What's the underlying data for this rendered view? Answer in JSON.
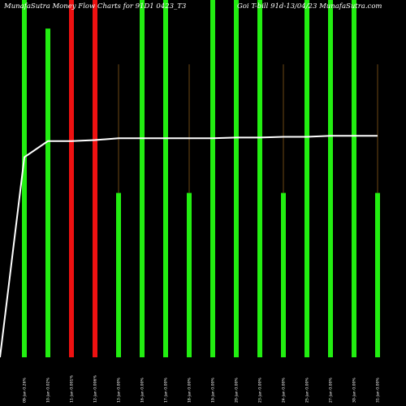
{
  "chart_data": {
    "type": "bar",
    "title_left": "MunafaSutra  Money Flow  Charts for 91D1 0423_T3",
    "title_right": "Goi   T-bill 91d-13/04/23  MunafaSutra.com",
    "colors": {
      "background": "#000000",
      "up": "#22ee11",
      "down": "#ee1111",
      "line": "#ffffff",
      "wick": "#8a5a1a"
    },
    "categories": [
      "09-Jan 0.26%",
      "10-Jan 0.02%",
      "11-Jan 0.001%",
      "12-Jan 0.006%",
      "13-Jan 0.00%",
      "16-Jan 0.00%",
      "17-Jan 0.00%",
      "18-Jan 0.00%",
      "19-Jan 0.00%",
      "20-Jan 0.00%",
      "23-Jan 0.00%",
      "24-Jan 0.00%",
      "25-Jan 0.00%",
      "27-Jan 0.00%",
      "30-Jan 0.00%",
      "31-Jan 0.00%"
    ],
    "bar_values": [
      100,
      92,
      100,
      100,
      46,
      100,
      100,
      46,
      100,
      100,
      100,
      46,
      100,
      100,
      100,
      46
    ],
    "bar_colors": [
      "up",
      "up",
      "down",
      "down",
      "up",
      "up",
      "up",
      "up",
      "up",
      "up",
      "up",
      "up",
      "up",
      "up",
      "up",
      "up"
    ],
    "wicks": [
      0,
      0,
      0,
      0,
      82,
      0,
      0,
      82,
      0,
      0,
      0,
      82,
      0,
      0,
      0,
      82
    ],
    "line_values": [
      56,
      60.5,
      60.5,
      60.8,
      61.3,
      61.3,
      61.3,
      61.3,
      61.3,
      61.5,
      61.5,
      61.7,
      61.7,
      62,
      62,
      62
    ],
    "line_start": 0,
    "ylim": [
      0,
      100
    ]
  }
}
